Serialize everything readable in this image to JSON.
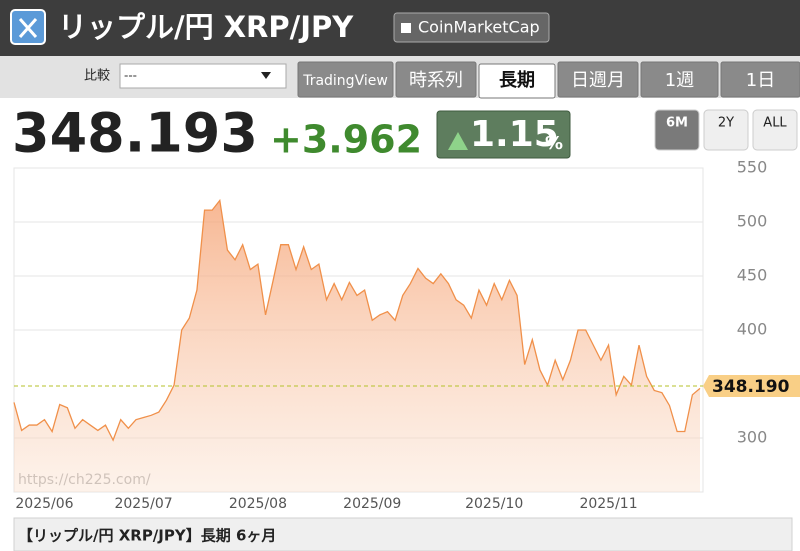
{
  "header": {
    "title": "リップル/円 XRP/JPY",
    "button": "CoinMarketCap"
  },
  "toolbar": {
    "compare_label": "比較",
    "compare_select": "---",
    "tabs": [
      "TradingView",
      "時系列",
      "長期",
      "日週月",
      "1週",
      "1日"
    ]
  },
  "quote": {
    "price": "348.193",
    "change": "+3.962",
    "change_percent": "1.15",
    "percent_sign": "%",
    "ranges": [
      "6M",
      "2Y",
      "ALL"
    ]
  },
  "chart_data": {
    "type": "area",
    "color": "#f0904a",
    "categories": [
      null,
      null,
      null,
      null,
      "2025/06",
      null,
      null,
      null,
      null,
      null,
      null,
      null,
      null,
      null,
      null,
      null,
      null,
      "2025/07",
      null,
      null,
      null,
      null,
      null,
      null,
      null,
      null,
      null,
      null,
      null,
      null,
      null,
      null,
      "2025/08",
      null,
      null,
      null,
      null,
      null,
      null,
      null,
      null,
      null,
      null,
      null,
      null,
      null,
      null,
      "2025/09",
      null,
      null,
      null,
      null,
      null,
      null,
      null,
      null,
      null,
      null,
      null,
      null,
      null,
      null,
      null,
      "2025/10",
      null,
      null,
      null,
      null,
      null,
      null,
      null,
      null,
      null,
      null,
      null,
      null,
      null,
      null,
      "2025/11",
      null,
      null,
      null,
      null,
      null,
      null,
      null,
      null,
      null,
      null,
      null,
      null
    ],
    "values": [
      333,
      307,
      312,
      312,
      317,
      306,
      331,
      328,
      309,
      317,
      312,
      307,
      312,
      298,
      317,
      309,
      317,
      319,
      321,
      324,
      335,
      349,
      400,
      411,
      437,
      511,
      511,
      520,
      474,
      465,
      479,
      456,
      461,
      414,
      446,
      479,
      479,
      456,
      477,
      456,
      461,
      428,
      443,
      428,
      444,
      432,
      437,
      409,
      414,
      417,
      409,
      432,
      443,
      457,
      448,
      443,
      452,
      443,
      428,
      423,
      411,
      437,
      423,
      443,
      428,
      446,
      432,
      368,
      391,
      363,
      349,
      372,
      354,
      372,
      400,
      400,
      386,
      372,
      386,
      340,
      357,
      349,
      386,
      357,
      344,
      342,
      330,
      306,
      306,
      340,
      346
    ],
    "ylim": [
      250,
      550
    ],
    "yticks": [
      300,
      400,
      450,
      500,
      550
    ],
    "grid": true,
    "last_value": {
      "value": 348.19,
      "label": "348.190"
    },
    "watermark": "https://ch225.com/"
  },
  "footer": {
    "caption": "【リップル/円 XRP/JPY】長期 6ヶ月"
  }
}
